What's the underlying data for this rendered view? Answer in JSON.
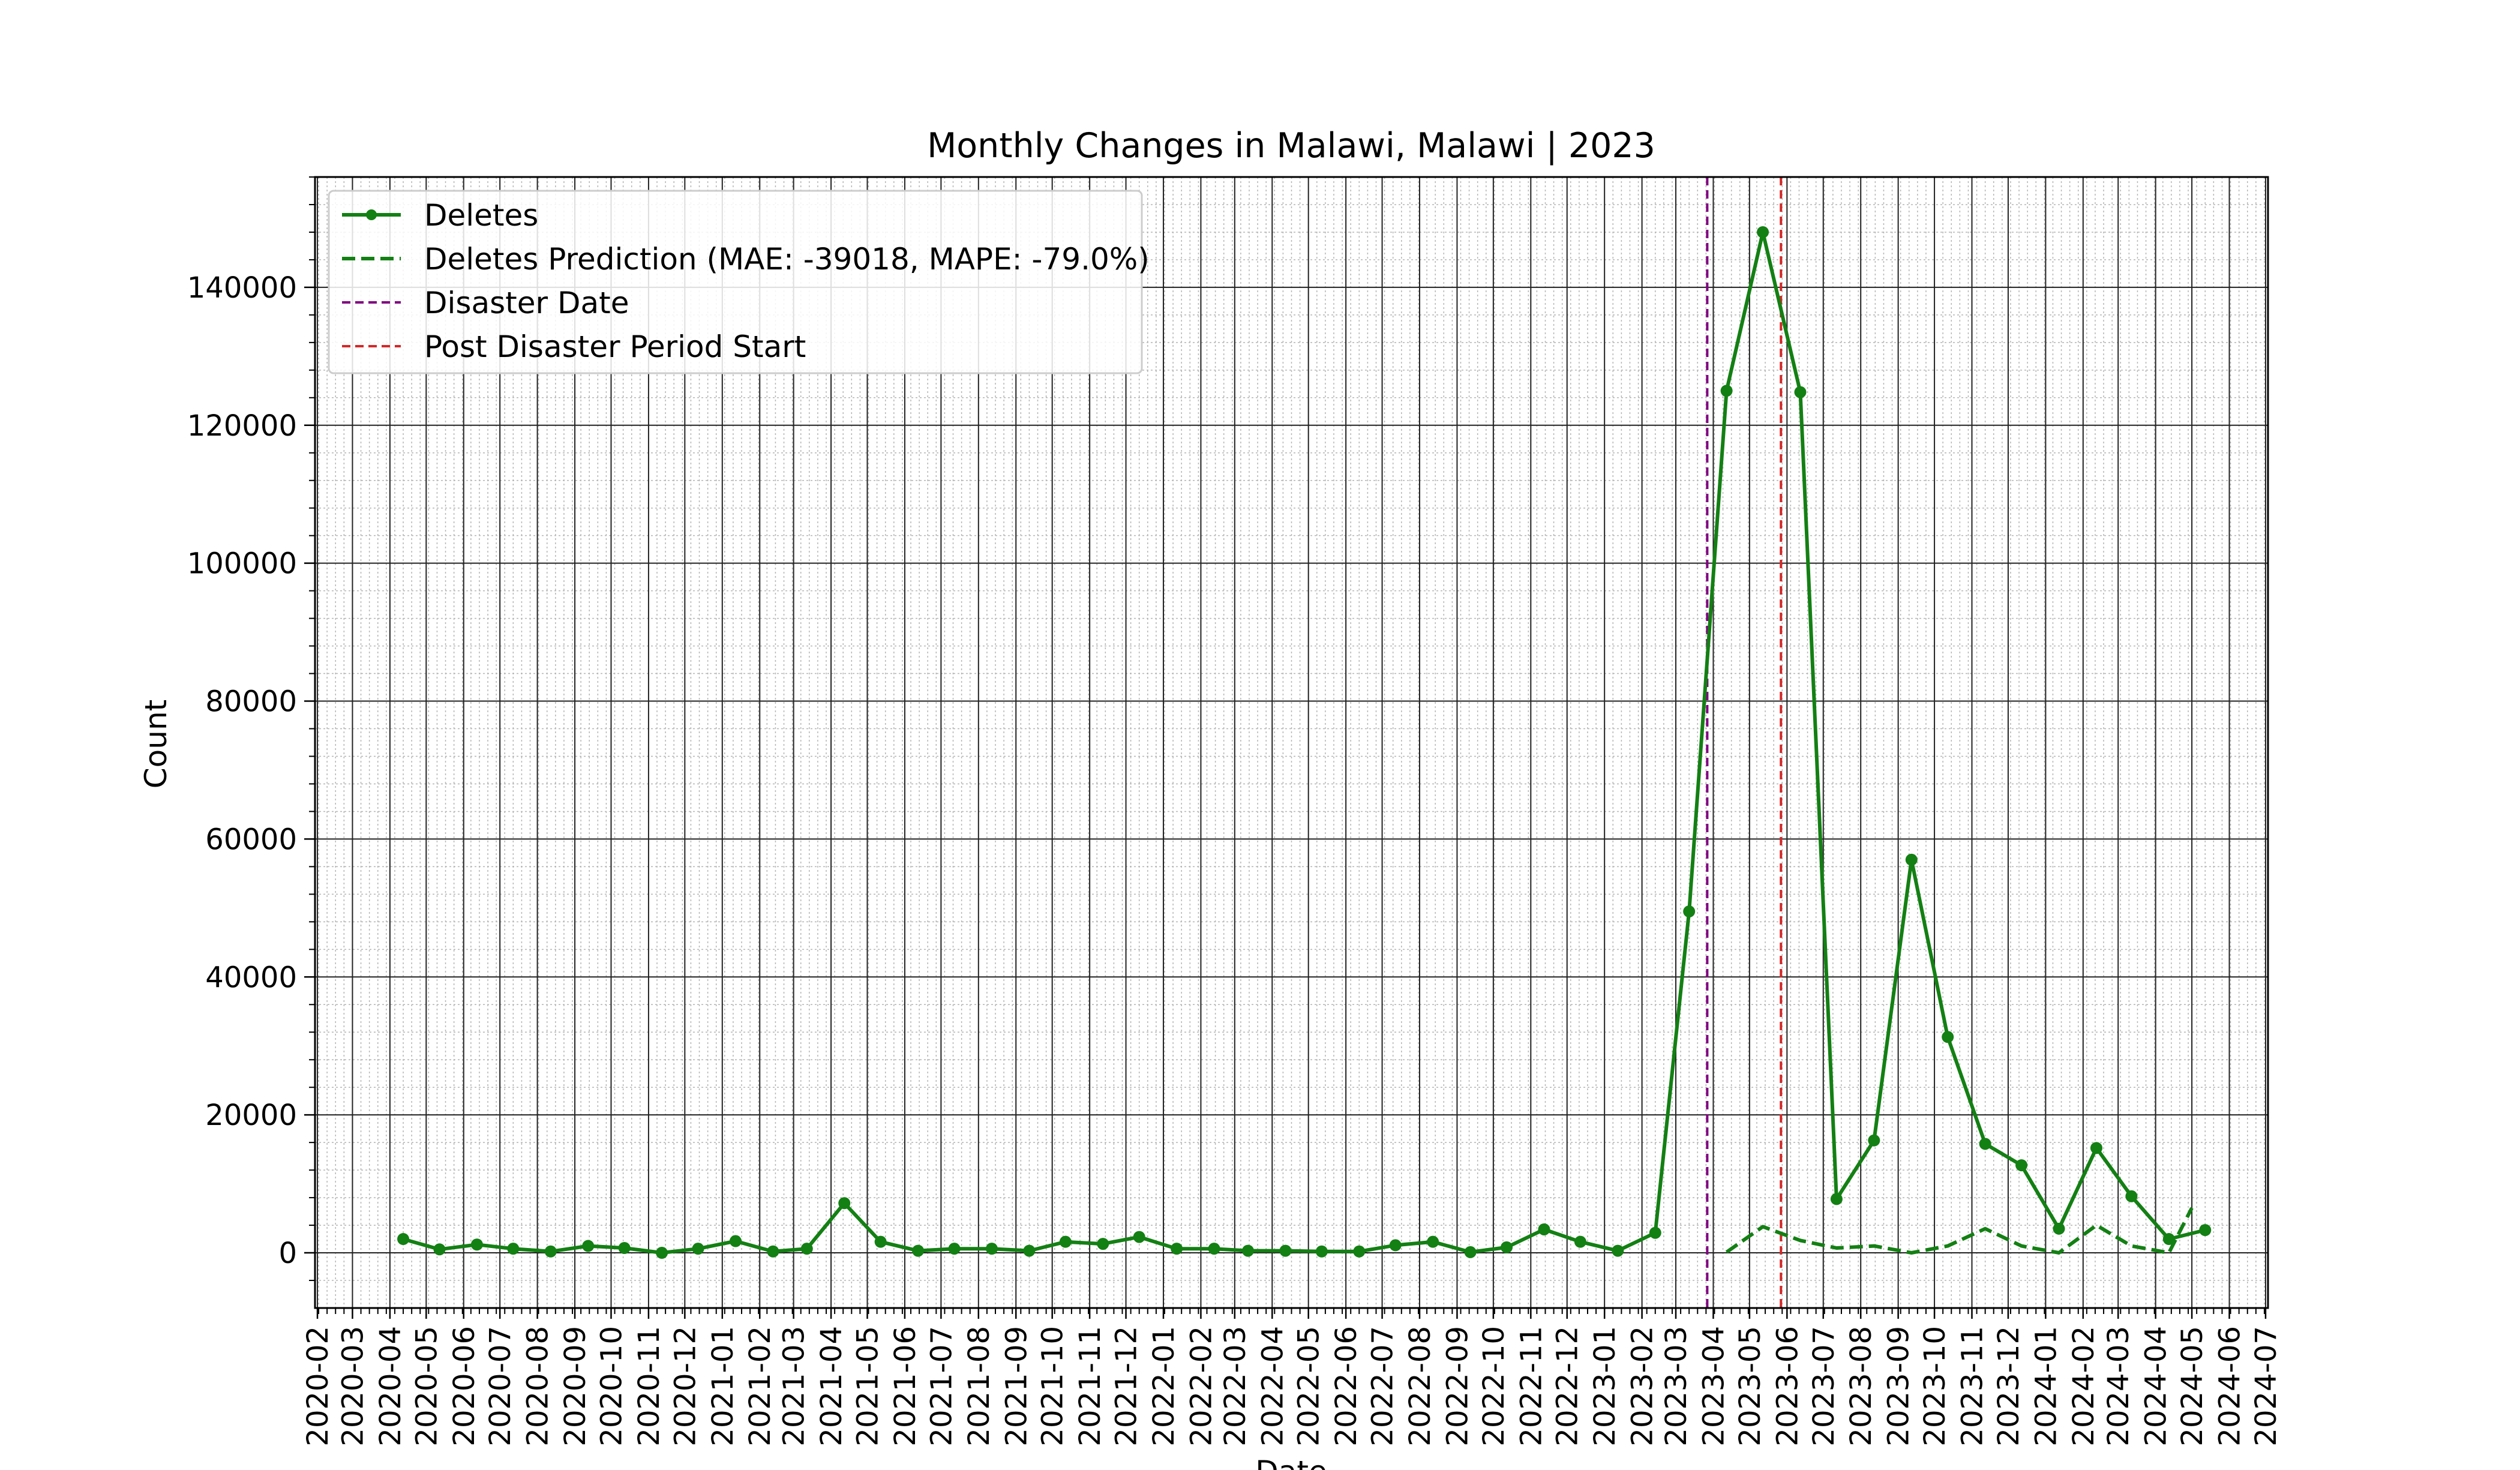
{
  "chart_data": {
    "type": "line",
    "title": "Monthly Changes in Malawi, Malawi | 2023",
    "xlabel": "Date",
    "ylabel": "Count",
    "xlim": [
      "2020-02",
      "2024-07"
    ],
    "ylim": [
      -8000,
      156000
    ],
    "x_ticks": [
      "2020-02",
      "2020-03",
      "2020-04",
      "2020-05",
      "2020-06",
      "2020-07",
      "2020-08",
      "2020-09",
      "2020-10",
      "2020-11",
      "2020-12",
      "2021-01",
      "2021-02",
      "2021-03",
      "2021-04",
      "2021-05",
      "2021-06",
      "2021-07",
      "2021-08",
      "2021-09",
      "2021-10",
      "2021-11",
      "2021-12",
      "2022-01",
      "2022-02",
      "2022-03",
      "2022-04",
      "2022-05",
      "2022-06",
      "2022-07",
      "2022-08",
      "2022-09",
      "2022-10",
      "2022-11",
      "2022-12",
      "2023-01",
      "2023-02",
      "2023-03",
      "2023-04",
      "2023-05",
      "2023-06",
      "2023-07",
      "2023-08",
      "2023-09",
      "2023-10",
      "2023-11",
      "2023-12",
      "2024-01",
      "2024-02",
      "2024-03",
      "2024-04",
      "2024-05",
      "2024-06",
      "2024-07"
    ],
    "y_ticks": [
      0,
      20000,
      40000,
      60000,
      80000,
      100000,
      120000,
      140000
    ],
    "y_tick_labels": [
      "0",
      "20000",
      "40000",
      "60000",
      "80000",
      "100000",
      "120000",
      "140000"
    ],
    "grid": true,
    "legend_position": "top-left",
    "series": [
      {
        "name": "Deletes",
        "style": "solid-with-markers",
        "color": "#138013",
        "x": [
          "2020-04-12",
          "2020-05-12",
          "2020-06-12",
          "2020-07-12",
          "2020-08-12",
          "2020-09-12",
          "2020-10-12",
          "2020-11-12",
          "2020-12-12",
          "2021-01-12",
          "2021-02-12",
          "2021-03-12",
          "2021-04-12",
          "2021-05-12",
          "2021-06-12",
          "2021-07-12",
          "2021-08-12",
          "2021-09-12",
          "2021-10-12",
          "2021-11-12",
          "2021-12-12",
          "2022-01-12",
          "2022-02-12",
          "2022-03-12",
          "2022-04-12",
          "2022-05-12",
          "2022-06-12",
          "2022-07-12",
          "2022-08-12",
          "2022-09-12",
          "2022-10-12",
          "2022-11-12",
          "2022-12-12",
          "2023-01-12",
          "2023-02-12",
          "2023-03-12",
          "2023-04-12",
          "2023-05-12",
          "2023-06-12",
          "2023-07-12",
          "2023-08-12",
          "2023-09-12",
          "2023-10-12",
          "2023-11-12",
          "2023-12-12",
          "2024-01-12",
          "2024-02-12",
          "2024-03-12",
          "2024-04-12",
          "2024-05-12"
        ],
        "values": [
          2000,
          500,
          1200,
          600,
          200,
          1000,
          700,
          0,
          600,
          1700,
          200,
          600,
          7200,
          1600,
          300,
          600,
          600,
          300,
          1600,
          1300,
          2300,
          600,
          600,
          300,
          300,
          200,
          200,
          1100,
          1600,
          100,
          800,
          3400,
          1600,
          300,
          2900,
          49500,
          125000,
          148000,
          124800,
          7800,
          16300,
          57000,
          31300,
          15800,
          12700,
          3500,
          15200,
          8200,
          2000,
          3300
        ]
      },
      {
        "name": "Deletes Prediction (MAE: -39018, MAPE: -79.0%)",
        "style": "dashed",
        "color": "#138013",
        "x": [
          "2023-04-12",
          "2023-05-12",
          "2023-06-12",
          "2023-07-12",
          "2023-08-12",
          "2023-09-12",
          "2023-10-12",
          "2023-11-12",
          "2023-12-12",
          "2024-01-12",
          "2024-02-12",
          "2024-03-12",
          "2024-04-12",
          "2024-05-01"
        ],
        "values": [
          100,
          3800,
          1800,
          700,
          1000,
          0,
          1000,
          3500,
          1000,
          0,
          4000,
          1000,
          0,
          6500
        ]
      }
    ],
    "vlines": [
      {
        "name": "Disaster Date",
        "x": "2023-03-27",
        "color": "#800080",
        "style": "dashed"
      },
      {
        "name": "Post Disaster Period Start",
        "x": "2023-05-27",
        "color": "#d62728",
        "style": "dashed"
      }
    ]
  }
}
